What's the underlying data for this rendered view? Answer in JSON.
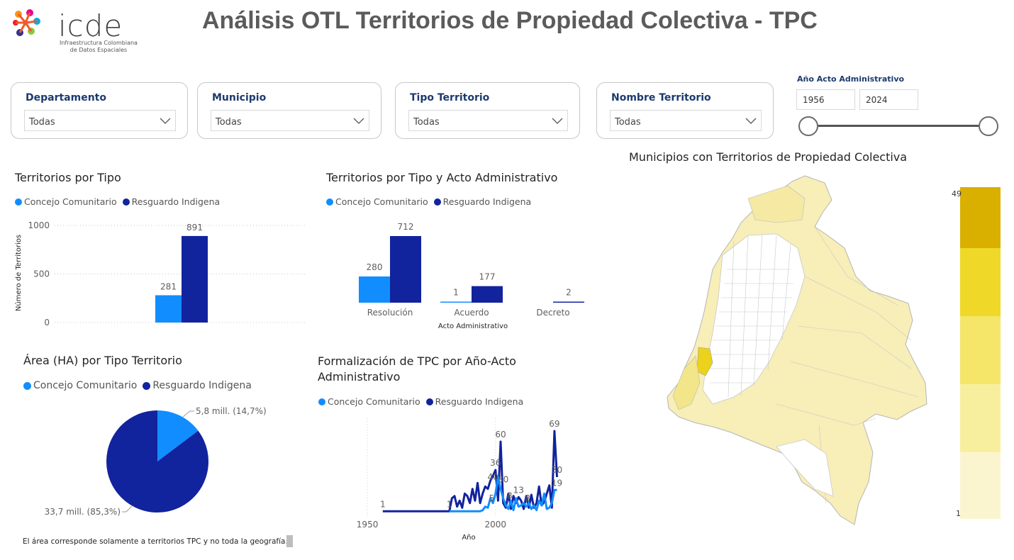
{
  "logo": {
    "text": "icde",
    "subtitle_line1": "Infraestructura Colombiana",
    "subtitle_line2": "de Datos Espaciales"
  },
  "page_title": "Análisis OTL Territorios de Propiedad Colectiva - TPC",
  "filters": [
    {
      "label": "Departamento",
      "value": "Todas"
    },
    {
      "label": "Municipio",
      "value": "Todas"
    },
    {
      "label": "Tipo Territorio",
      "value": "Todas"
    },
    {
      "label": "Nombre Territorio",
      "value": "Todas"
    }
  ],
  "year_range": {
    "label": "Año Acto Administrativo",
    "from": "1956",
    "to": "2024"
  },
  "colors": {
    "concejo": "#118dff",
    "resguardo": "#12239e",
    "map_high": "#d9b000",
    "map_low": "#fbf5cf"
  },
  "legend": {
    "concejo": "Concejo Comunitario",
    "resguardo": "Resguardo Indigena"
  },
  "chart_data": [
    {
      "type": "bar",
      "title": "Territorios por Tipo",
      "ylabel": "Número de Territorios",
      "ylim": [
        0,
        1000
      ],
      "yticks": [
        "1000",
        "500",
        "0"
      ],
      "categories": [
        ""
      ],
      "series": [
        {
          "name": "Concejo Comunitario",
          "values": [
            281
          ]
        },
        {
          "name": "Resguardo Indigena",
          "values": [
            891
          ]
        }
      ],
      "labels": [
        "281",
        "891"
      ]
    },
    {
      "type": "bar",
      "title": "Territorios por Tipo y Acto Administrativo",
      "xlabel": "Acto Administrativo",
      "categories": [
        "Resolución",
        "Acuerdo",
        "Decreto"
      ],
      "series": [
        {
          "name": "Concejo Comunitario",
          "values": [
            280,
            1,
            0
          ]
        },
        {
          "name": "Resguardo Indigena",
          "values": [
            712,
            177,
            2
          ]
        }
      ],
      "labels": {
        "concejo": [
          "280",
          "1",
          ""
        ],
        "resguardo": [
          "712",
          "177",
          "2"
        ]
      }
    },
    {
      "type": "pie",
      "title": "Área (HA) por Tipo Territorio",
      "slices": [
        {
          "name": "Concejo Comunitario",
          "value": 5.8,
          "percent": 14.7,
          "label": "5,8 mill. (14,7%)"
        },
        {
          "name": "Resguardo Indigena",
          "value": 33.7,
          "percent": 85.3,
          "label": "33,7 mill. (85,3%)"
        }
      ]
    },
    {
      "type": "line",
      "title_line1": "Formalización de TPC por Año-Acto",
      "title_line2": "Administrativo",
      "xlabel": "Año",
      "xticks": [
        "1950",
        "2000"
      ],
      "xlim": [
        1945,
        2028
      ],
      "ylim": [
        0,
        72
      ],
      "series": [
        {
          "name": "Resguardo Indigena",
          "x": [
            1956,
            1960,
            1965,
            1970,
            1975,
            1980,
            1982,
            1983,
            1984,
            1985,
            1986,
            1987,
            1988,
            1989,
            1990,
            1991,
            1992,
            1993,
            1994,
            1995,
            1996,
            1997,
            1998,
            1999,
            2000,
            2001,
            2002,
            2003,
            2004,
            2005,
            2006,
            2007,
            2008,
            2009,
            2010,
            2011,
            2012,
            2013,
            2014,
            2015,
            2016,
            2017,
            2018,
            2019,
            2020,
            2021,
            2022,
            2023,
            2024
          ],
          "y": [
            1,
            1,
            1,
            1,
            1,
            1,
            1,
            12,
            14,
            5,
            10,
            4,
            16,
            14,
            8,
            20,
            10,
            25,
            8,
            16,
            22,
            20,
            27,
            31,
            36,
            10,
            60,
            8,
            4,
            16,
            3,
            14,
            8,
            13,
            10,
            3,
            14,
            4,
            15,
            4,
            8,
            22,
            6,
            9,
            16,
            23,
            4,
            69,
            30
          ]
        },
        {
          "name": "Concejo Comunitario",
          "x": [
            1982,
            1985,
            1990,
            1994,
            1995,
            1996,
            1997,
            1998,
            1999,
            2000,
            2001,
            2002,
            2003,
            2004,
            2005,
            2006,
            2007,
            2008,
            2009,
            2010,
            2011,
            2012,
            2013,
            2014,
            2015,
            2016,
            2017,
            2018,
            2019,
            2020,
            2021,
            2022,
            2023,
            2024
          ],
          "y": [
            1,
            1,
            1,
            1,
            2,
            5,
            4,
            12,
            8,
            16,
            30,
            20,
            12,
            6,
            3,
            10,
            2,
            12,
            5,
            6,
            8,
            5,
            8,
            3,
            6,
            2,
            10,
            6,
            16,
            3,
            4,
            8,
            19,
            19
          ]
        }
      ],
      "point_labels": [
        {
          "text": "1",
          "x": 1956,
          "y": 1
        },
        {
          "text": "1",
          "x": 1982,
          "y": 1
        },
        {
          "text": "60",
          "x": 2002,
          "y": 60
        },
        {
          "text": "36",
          "x": 2000,
          "y": 36
        },
        {
          "text": "40",
          "x": 1999,
          "y": 24
        },
        {
          "text": "30",
          "x": 2003,
          "y": 22
        },
        {
          "text": "5",
          "x": 1998.5,
          "y": 6
        },
        {
          "text": "8",
          "x": 2005.5,
          "y": 8
        },
        {
          "text": "13",
          "x": 2009,
          "y": 13
        },
        {
          "text": "8",
          "x": 2012.5,
          "y": 6
        },
        {
          "text": "69",
          "x": 2023,
          "y": 69
        },
        {
          "text": "30",
          "x": 2024,
          "y": 30
        },
        {
          "text": "19",
          "x": 2024,
          "y": 19
        }
      ]
    }
  ],
  "map": {
    "title": "Municipios con Territorios de Propiedad Colectiva",
    "scale_max": "49",
    "scale_min": "1"
  },
  "footnote": "El área corresponde solamente a territorios TPC y no toda la geografía."
}
